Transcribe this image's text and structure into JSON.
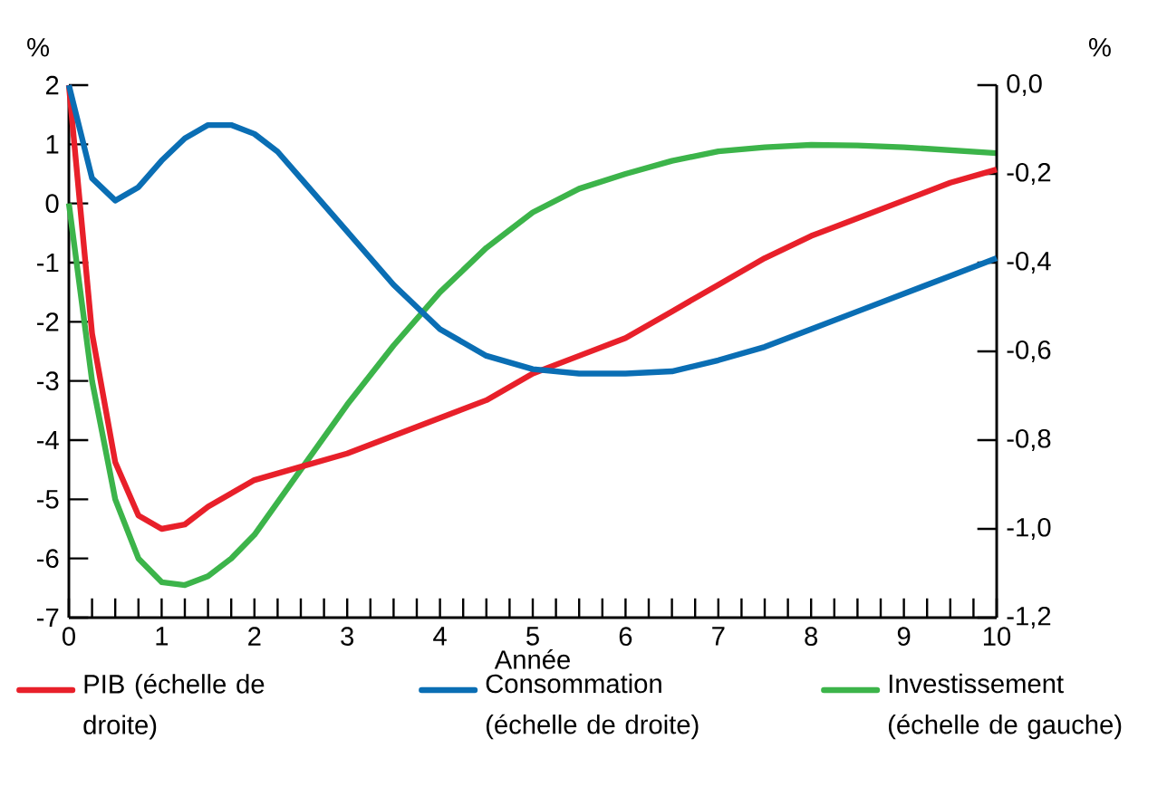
{
  "chart_data": {
    "type": "line",
    "xlabel": "Année",
    "ylabel": "%",
    "y2label": "%",
    "xlim": [
      0,
      10
    ],
    "xticks": [
      0,
      1,
      2,
      3,
      4,
      5,
      6,
      7,
      8,
      9,
      10
    ],
    "ylim": [
      -7,
      2
    ],
    "yticks": [
      -7,
      -6,
      -5,
      -4,
      -3,
      -2,
      -1,
      0,
      1,
      2
    ],
    "y2lim": [
      -1.2,
      0
    ],
    "y2ticks": [
      {
        "value": -1.2,
        "label": "-1,2"
      },
      {
        "value": -1.0,
        "label": "-1,0"
      },
      {
        "value": -0.8,
        "label": "-0,8"
      },
      {
        "value": -0.6,
        "label": "-0,6"
      },
      {
        "value": -0.4,
        "label": "-0,4"
      },
      {
        "value": -0.2,
        "label": "-0,2"
      },
      {
        "value": 0,
        "label": "0,0"
      }
    ],
    "legend": "bottom",
    "grid": false,
    "marker": "none",
    "line_style": "solid",
    "series": [
      {
        "name": "PIB (échelle de droite)",
        "color": "#e8202a",
        "axis": "y2",
        "x": [
          0,
          0.25,
          0.5,
          0.75,
          1,
          1.25,
          1.5,
          1.75,
          2,
          2.5,
          3,
          3.5,
          4,
          4.5,
          5,
          5.5,
          6,
          6.5,
          7,
          7.5,
          8,
          8.5,
          9,
          9.5,
          10
        ],
        "values": [
          0.0,
          -0.56,
          -0.85,
          -0.97,
          -1.0,
          -0.99,
          -0.95,
          -0.92,
          -0.89,
          -0.86,
          -0.83,
          -0.79,
          -0.75,
          -0.71,
          -0.65,
          -0.61,
          -0.57,
          -0.51,
          -0.45,
          -0.39,
          -0.34,
          -0.3,
          -0.26,
          -0.22,
          -0.19
        ]
      },
      {
        "name": "Consommation (échelle de droite)",
        "color": "#0a6eb4",
        "axis": "y2",
        "x": [
          0,
          0.25,
          0.5,
          0.75,
          1,
          1.25,
          1.5,
          1.75,
          2,
          2.25,
          2.5,
          3,
          3.5,
          4,
          4.5,
          5,
          5.5,
          6,
          6.5,
          7,
          7.5,
          8,
          8.5,
          9,
          9.5,
          10
        ],
        "values": [
          0.0,
          -0.21,
          -0.26,
          -0.23,
          -0.17,
          -0.12,
          -0.09,
          -0.09,
          -0.11,
          -0.15,
          -0.21,
          -0.33,
          -0.45,
          -0.55,
          -0.61,
          -0.64,
          -0.65,
          -0.65,
          -0.645,
          -0.62,
          -0.59,
          -0.55,
          -0.51,
          -0.47,
          -0.43,
          -0.39
        ]
      },
      {
        "name": "Investissement (échelle de gauche)",
        "color": "#3cb44a",
        "axis": "y",
        "x": [
          0,
          0.25,
          0.5,
          0.75,
          1,
          1.25,
          1.5,
          1.75,
          2,
          2.5,
          3,
          3.5,
          4,
          4.5,
          5,
          5.5,
          6,
          6.5,
          7,
          7.5,
          8,
          8.5,
          9,
          9.5,
          10
        ],
        "values": [
          0,
          -3.0,
          -5.0,
          -6.0,
          -6.4,
          -6.45,
          -6.3,
          -6.0,
          -5.6,
          -4.5,
          -3.4,
          -2.4,
          -1.5,
          -0.75,
          -0.15,
          0.25,
          0.5,
          0.72,
          0.88,
          0.95,
          0.99,
          0.98,
          0.95,
          0.9,
          0.85
        ]
      }
    ]
  }
}
